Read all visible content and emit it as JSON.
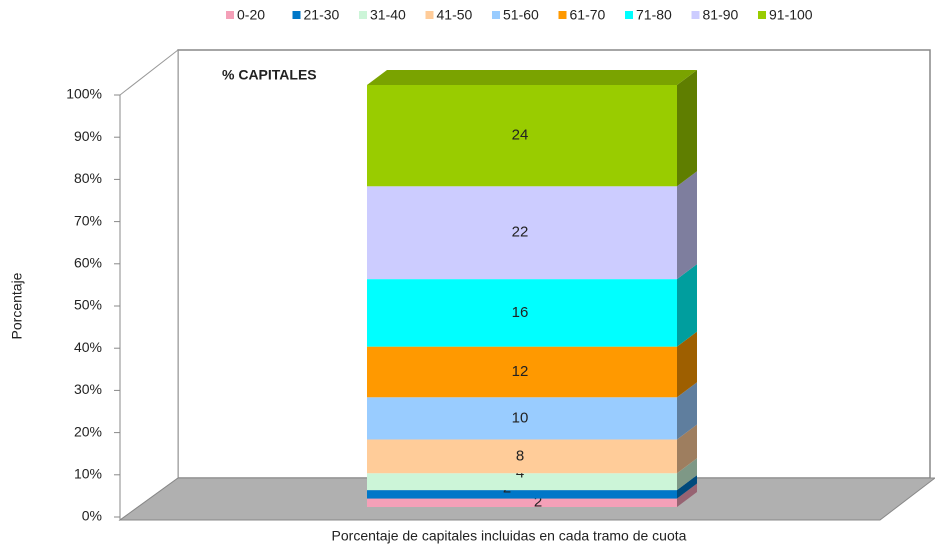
{
  "chart_data": {
    "type": "stacked-bar-3d",
    "annotation": "% CAPITALES",
    "ylabel": "Porcentaje",
    "xlabel": "Porcentaje de capitales incluidas en cada tramo de cuota",
    "ylim": [
      0,
      100
    ],
    "yticks": [
      {
        "value": 0,
        "label": "0%"
      },
      {
        "value": 10,
        "label": "10%"
      },
      {
        "value": 20,
        "label": "20%"
      },
      {
        "value": 30,
        "label": "30%"
      },
      {
        "value": 40,
        "label": "40%"
      },
      {
        "value": 50,
        "label": "50%"
      },
      {
        "value": 60,
        "label": "60%"
      },
      {
        "value": 70,
        "label": "70%"
      },
      {
        "value": 80,
        "label": "80%"
      },
      {
        "value": 90,
        "label": "90%"
      },
      {
        "value": 100,
        "label": "100%"
      }
    ],
    "series": [
      {
        "name": "0-20",
        "color": "#f4a0b8",
        "values": [
          2
        ]
      },
      {
        "name": "21-30",
        "color": "#0077c8",
        "values": [
          2
        ]
      },
      {
        "name": "31-40",
        "color": "#ccf5d8",
        "values": [
          4
        ]
      },
      {
        "name": "41-50",
        "color": "#ffcc99",
        "values": [
          8
        ]
      },
      {
        "name": "51-60",
        "color": "#99ccff",
        "values": [
          10
        ]
      },
      {
        "name": "61-70",
        "color": "#ff9900",
        "values": [
          12
        ]
      },
      {
        "name": "71-80",
        "color": "#00ffff",
        "values": [
          16
        ]
      },
      {
        "name": "81-90",
        "color": "#ccccff",
        "values": [
          22
        ]
      },
      {
        "name": "91-100",
        "color": "#99cc00",
        "values": [
          24
        ]
      }
    ]
  }
}
